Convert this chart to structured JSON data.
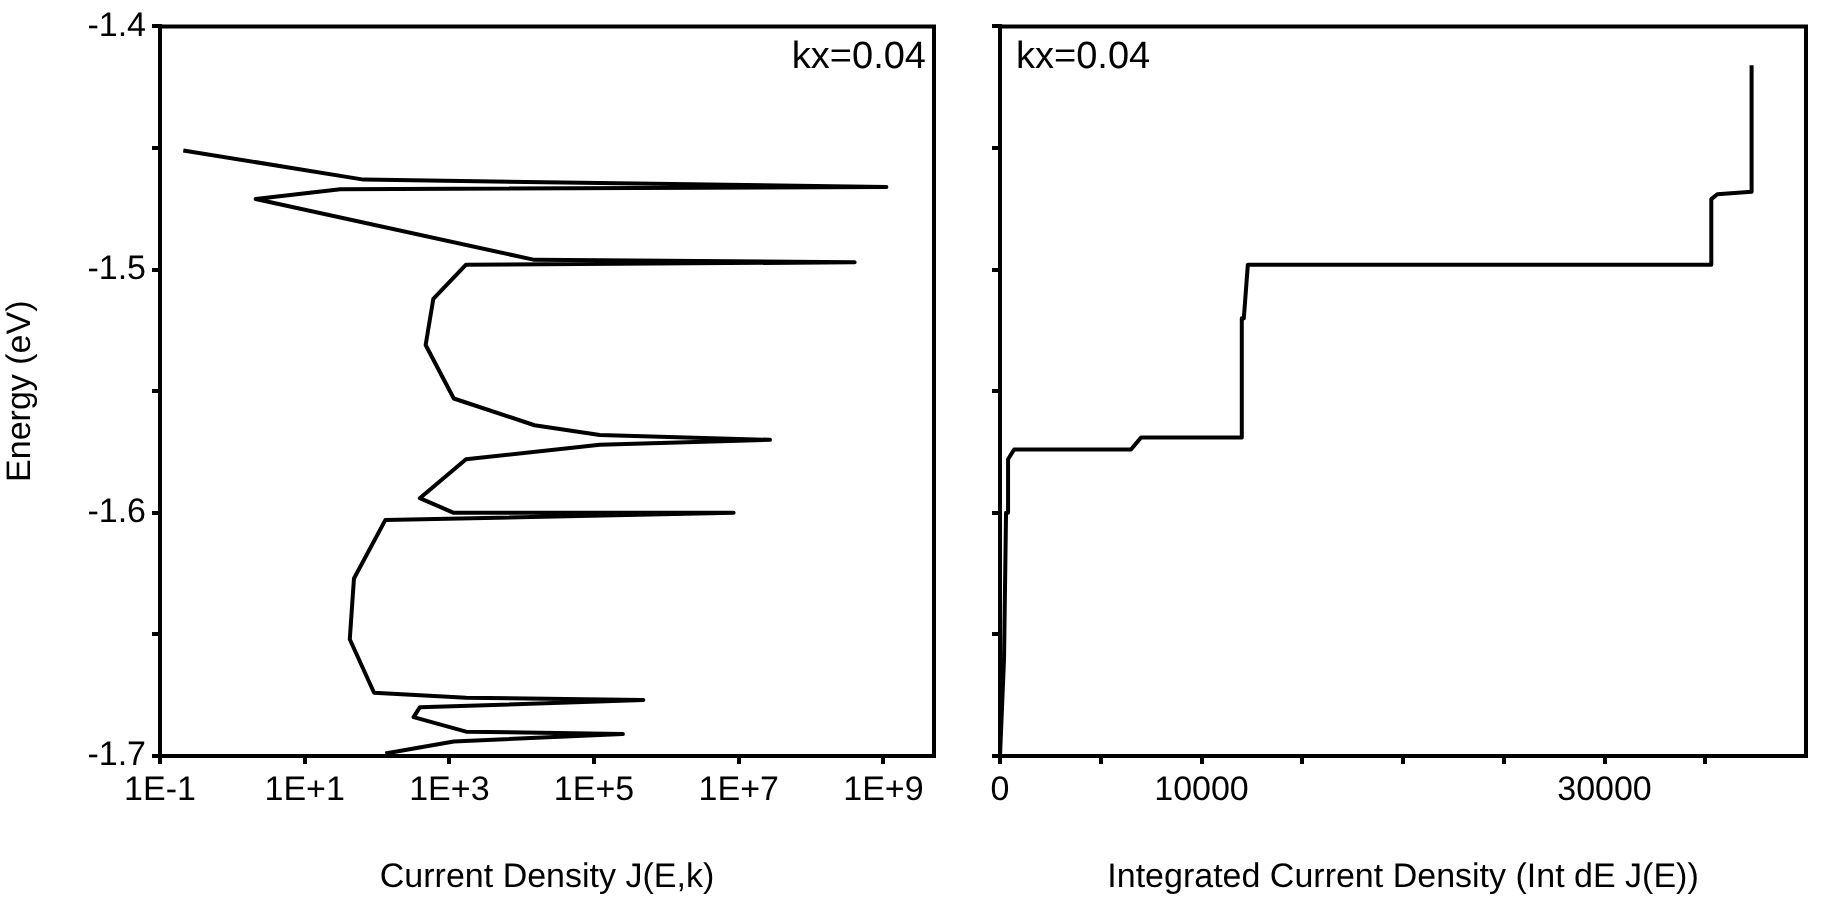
{
  "chart_data": [
    {
      "type": "line",
      "xlabel": "Current Density J(E,k)",
      "ylabel": "Energy (eV)",
      "annotations": [
        "kx=0.04"
      ],
      "log": "x",
      "grid": false,
      "legend": false,
      "marker": "none",
      "line_style": "solid",
      "xlim": [
        0.1,
        5000000000
      ],
      "xticks": [
        {
          "value": 0.1,
          "label": "1E-1"
        },
        {
          "value": 10,
          "label": "1E+1"
        },
        {
          "value": 1000,
          "label": "1E+3"
        },
        {
          "value": 100000,
          "label": "1E+5"
        },
        {
          "value": 10000000,
          "label": "1E+7"
        },
        {
          "value": 1000000000,
          "label": "1E+9"
        }
      ],
      "ylim": [
        -1.7,
        -1.4
      ],
      "yticks": [
        -1.7,
        {
          "value": -1.65,
          "label": null
        },
        -1.6,
        {
          "value": -1.55,
          "label": null
        },
        -1.5,
        {
          "value": -1.45,
          "label": null
        },
        -1.4
      ],
      "series": [
        {
          "color": "#000000",
          "x": [
            0.21,
            65,
            1100000000,
            31,
            2.1,
            15000,
            400000000,
            1700,
            600,
            470,
            1150,
            15000,
            120000,
            27000000,
            120000,
            1700,
            390,
            1150,
            8500000,
            130,
            48,
            42,
            91,
            1700,
            480000,
            390,
            320,
            1700,
            250000,
            1150,
            130
          ],
          "values": [
            -1.451,
            -1.463,
            -1.466,
            -1.467,
            -1.471,
            -1.496,
            -1.497,
            -1.498,
            -1.512,
            -1.531,
            -1.553,
            -1.564,
            -1.568,
            -1.57,
            -1.572,
            -1.578,
            -1.594,
            -1.6,
            -1.6,
            -1.603,
            -1.627,
            -1.652,
            -1.674,
            -1.676,
            -1.677,
            -1.68,
            -1.684,
            -1.69,
            -1.691,
            -1.694,
            -1.699
          ]
        }
      ]
    },
    {
      "type": "line",
      "xlabel": "Integrated Current Density (Int dE J(E))",
      "annotations": [
        "kx=0.04"
      ],
      "grid": false,
      "legend": false,
      "marker": "none",
      "line_style": "solid",
      "tick_labels": "x",
      "xlim": [
        0,
        40000
      ],
      "xticks": [
        0,
        {
          "value": 5000,
          "label": null
        },
        10000,
        {
          "value": 15000,
          "label": null
        },
        {
          "value": 20000,
          "label": null
        },
        {
          "value": 25000,
          "label": null
        },
        30000,
        {
          "value": 35000,
          "label": null
        }
      ],
      "ylim": [
        -1.7,
        -1.4
      ],
      "yticks": [
        {
          "value": -1.7,
          "label": null
        },
        {
          "value": -1.65,
          "label": null
        },
        {
          "value": -1.6,
          "label": null
        },
        {
          "value": -1.55,
          "label": null
        },
        {
          "value": -1.5,
          "label": null
        },
        {
          "value": -1.45,
          "label": null
        },
        {
          "value": -1.4,
          "label": null
        }
      ],
      "series": [
        {
          "color": "#000000",
          "x": [
            0,
            200,
            300,
            400,
            400,
            700,
            6500,
            7000,
            12000,
            12000,
            12100,
            12300,
            35300,
            35300,
            35600,
            37300,
            37300
          ],
          "values": [
            -1.7,
            -1.66,
            -1.6,
            -1.6,
            -1.578,
            -1.574,
            -1.574,
            -1.569,
            -1.569,
            -1.52,
            -1.52,
            -1.498,
            -1.498,
            -1.471,
            -1.469,
            -1.468,
            -1.416
          ]
        }
      ]
    }
  ]
}
